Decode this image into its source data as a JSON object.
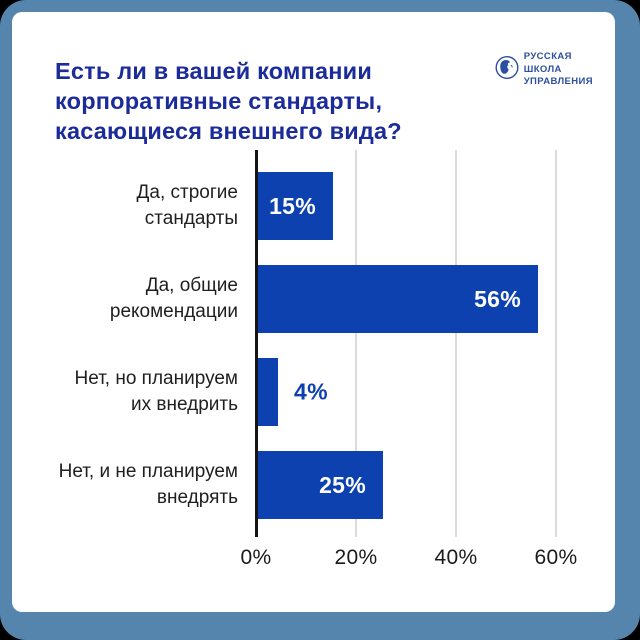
{
  "page": {
    "background_color": "#000000",
    "frame_color": "#5584ad",
    "card_color": "#ffffff"
  },
  "header": {
    "title": "Есть ли в вашей компании\nкорпоративные стандарты,\nкасающиеся внешнего вида?",
    "title_color": "#1b2b99",
    "logo": {
      "text": "РУССКАЯ\nШКОЛА\nУПРАВЛЕНИЯ",
      "color": "#2d4fa0"
    }
  },
  "chart_data": {
    "type": "bar",
    "orientation": "horizontal",
    "title": "Есть ли в вашей компании корпоративные стандарты, касающиеся внешнего вида?",
    "categories": [
      "Да, строгие\nстандарты",
      "Да, общие\nрекомендации",
      "Нет, но планируем\nих внедрить",
      "Нет, и не планируем\nвнедрять"
    ],
    "values": [
      15,
      56,
      4,
      25
    ],
    "value_labels": [
      "15%",
      "56%",
      "4%",
      "25%"
    ],
    "value_label_placement": [
      "inside",
      "inside",
      "outside",
      "inside"
    ],
    "x_ticks": [
      {
        "label": "0%",
        "value": 0
      },
      {
        "label": "20%",
        "value": 20
      },
      {
        "label": "40%",
        "value": 40
      },
      {
        "label": "60%",
        "value": 60
      }
    ],
    "xlim": [
      0,
      66
    ],
    "grid": true,
    "legend": false,
    "bar_color": "#0d41af",
    "gridline_color": "#dadada",
    "axis_color": "#141414",
    "label_color": "#1f1f1f",
    "tick_color": "#1a1a1a"
  }
}
